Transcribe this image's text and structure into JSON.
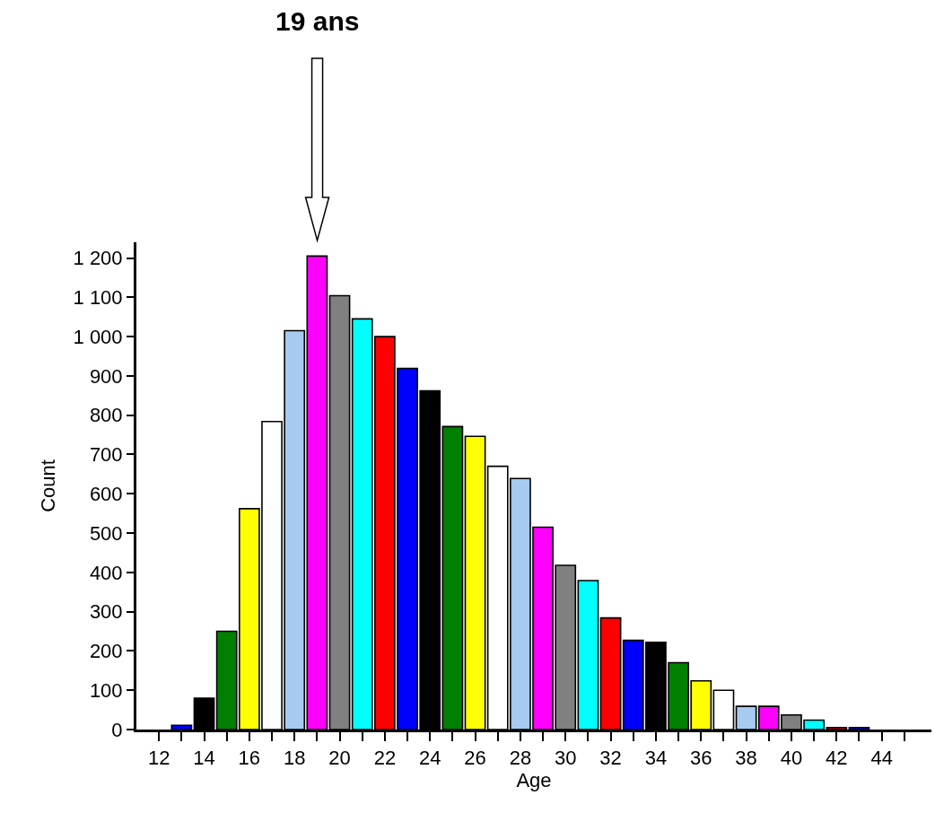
{
  "chart_data": {
    "type": "bar",
    "xlabel": "Age",
    "ylabel": "Count",
    "x": [
      13,
      14,
      15,
      16,
      17,
      18,
      19,
      20,
      21,
      22,
      23,
      24,
      25,
      26,
      27,
      28,
      29,
      30,
      31,
      32,
      33,
      34,
      35,
      36,
      37,
      38,
      39,
      40,
      41,
      42,
      43
    ],
    "values": [
      11,
      80,
      250,
      562,
      784,
      1015,
      1205,
      1104,
      1045,
      1000,
      919,
      862,
      771,
      746,
      670,
      639,
      515,
      418,
      379,
      284,
      227,
      222,
      170,
      124,
      100,
      59,
      59,
      37,
      24,
      5,
      5
    ],
    "colors": [
      "#0000ff",
      "#000000",
      "#008000",
      "#ffff00",
      "#ffffff",
      "#a6caf0",
      "#ff00ff",
      "#808080",
      "#00ffff",
      "#ff0000",
      "#0000ff",
      "#000000",
      "#008000",
      "#ffff00",
      "#ffffff",
      "#a6caf0",
      "#ff00ff",
      "#808080",
      "#00ffff",
      "#ff0000",
      "#0000ff",
      "#000000",
      "#008000",
      "#ffff00",
      "#ffffff",
      "#a6caf0",
      "#ff00ff",
      "#808080",
      "#00ffff",
      "#ff0000",
      "#0000ff"
    ],
    "xlim": [
      11,
      46.2
    ],
    "xticks": [
      12,
      {
        "value": 13,
        "label": null
      },
      14,
      {
        "value": 15,
        "label": null
      },
      16,
      {
        "value": 17,
        "label": null
      },
      18,
      {
        "value": 19,
        "label": null
      },
      20,
      {
        "value": 21,
        "label": null
      },
      22,
      {
        "value": 23,
        "label": null
      },
      24,
      {
        "value": 25,
        "label": null
      },
      26,
      {
        "value": 27,
        "label": null
      },
      28,
      {
        "value": 29,
        "label": null
      },
      30,
      {
        "value": 31,
        "label": null
      },
      32,
      {
        "value": 33,
        "label": null
      },
      34,
      {
        "value": 35,
        "label": null
      },
      36,
      {
        "value": 37,
        "label": null
      },
      38,
      {
        "value": 39,
        "label": null
      },
      40,
      {
        "value": 41,
        "label": null
      },
      42,
      {
        "value": 43,
        "label": null
      },
      44,
      {
        "value": 45,
        "label": null
      }
    ],
    "ylim": [
      0,
      1240
    ],
    "yticks": [
      0,
      100,
      200,
      300,
      400,
      500,
      600,
      700,
      800,
      900,
      {
        "value": 1000,
        "label": "1 000"
      },
      {
        "value": 1100,
        "label": "1 100"
      },
      {
        "value": 1200,
        "label": "1 200"
      }
    ],
    "annotations": [
      "19 ans"
    ]
  }
}
